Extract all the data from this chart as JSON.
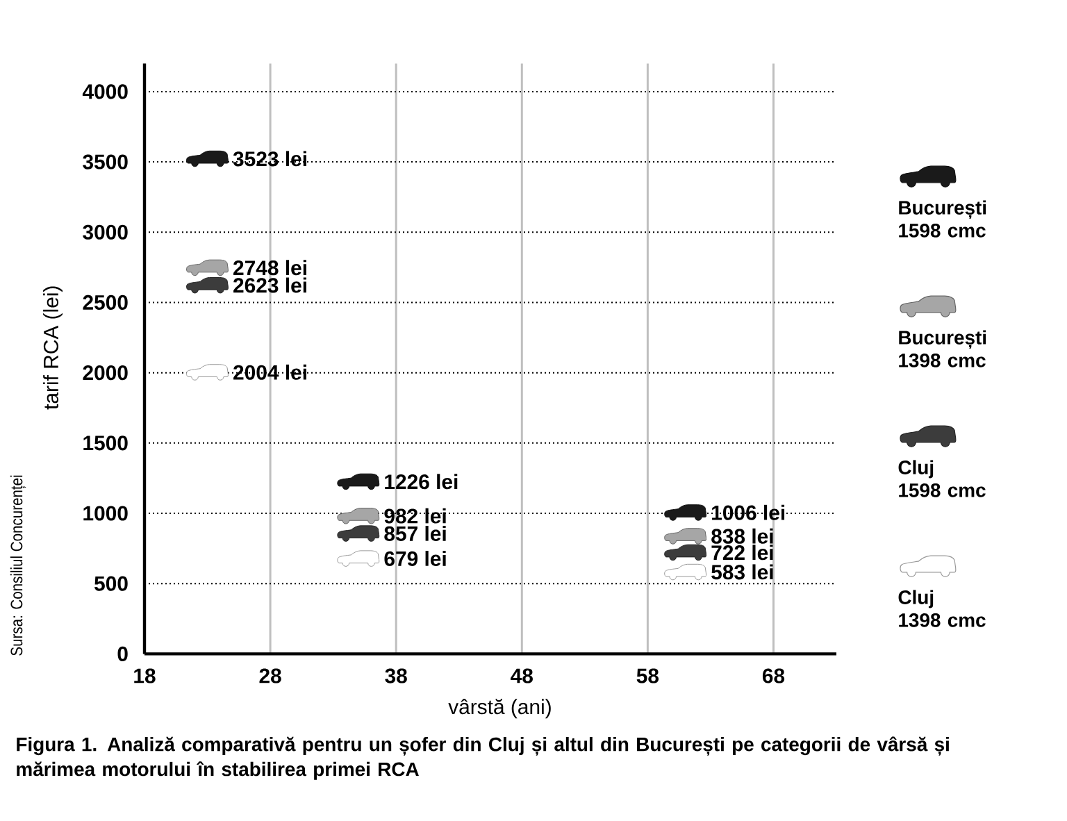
{
  "chart_data": {
    "type": "scatter",
    "xlabel": "vârstă (ani)",
    "ylabel": "tarif RCA (lei)",
    "annotations": [
      "Sursa: Consiliul Concurenței",
      "Figura 1. Analiză comparativă pentru un șofer din Cluj și altul din București pe categorii de vârsă și mărimea motorului în stabilirea primei RCA"
    ],
    "x": [
      23,
      35,
      61
    ],
    "xlim": [
      18,
      73
    ],
    "xticks": [
      18,
      28,
      38,
      48,
      58,
      68
    ],
    "ylim": [
      0,
      4200
    ],
    "yticks": [
      0,
      500,
      1000,
      1500,
      2000,
      2500,
      3000,
      3500,
      4000
    ],
    "grid": true,
    "legend": "right",
    "series": [
      {
        "name": "București 1598 cmc",
        "color": "#1a1a1a",
        "values": [
          3523,
          1226,
          1006
        ],
        "value_labels": [
          "3523 lei",
          "1226 lei",
          "1006 lei"
        ]
      },
      {
        "name": "București 1398 cmc",
        "color": "#a6a6a6",
        "values": [
          2748,
          982,
          838
        ],
        "value_labels": [
          "2748 lei",
          "982 lei",
          "838 lei"
        ]
      },
      {
        "name": "Cluj 1598 cmc",
        "color": "#3c3c3c",
        "values": [
          2623,
          857,
          722
        ],
        "value_labels": [
          "2623 lei",
          "857 lei",
          "722 lei"
        ]
      },
      {
        "name": "Cluj 1398 cmc",
        "color": "#ffffff",
        "values": [
          2004,
          679,
          583
        ],
        "value_labels": [
          "2004 lei",
          "679 lei",
          "583 lei"
        ]
      }
    ]
  }
}
